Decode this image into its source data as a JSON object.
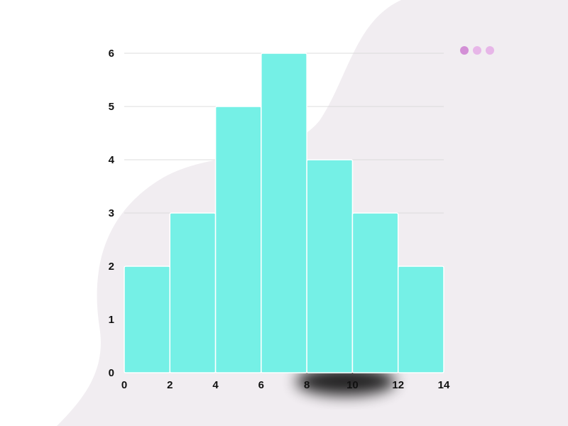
{
  "colors": {
    "bar": "#75F0E6",
    "bar_edge": "#ffffff",
    "grid": "#dcdcdc",
    "background_blob": "#F1EDF1",
    "dot_primary": "#D38FD6",
    "dot_secondary": "#E7B6E8"
  },
  "dots": {
    "icons": [
      "dot-primary-icon",
      "dot-secondary-icon",
      "dot-secondary-icon"
    ]
  },
  "chart_data": {
    "type": "bar",
    "bin_edges": [
      0,
      2,
      4,
      6,
      8,
      10,
      12,
      14
    ],
    "values": [
      2,
      3,
      5,
      6,
      4,
      3,
      2
    ],
    "x_ticks": [
      "0",
      "2",
      "4",
      "6",
      "8",
      "10",
      "12",
      "14"
    ],
    "y_ticks": [
      "0",
      "1",
      "2",
      "3",
      "4",
      "5",
      "6"
    ],
    "xlim": [
      0,
      14
    ],
    "ylim": [
      0,
      6
    ],
    "grid": "horizontal"
  }
}
